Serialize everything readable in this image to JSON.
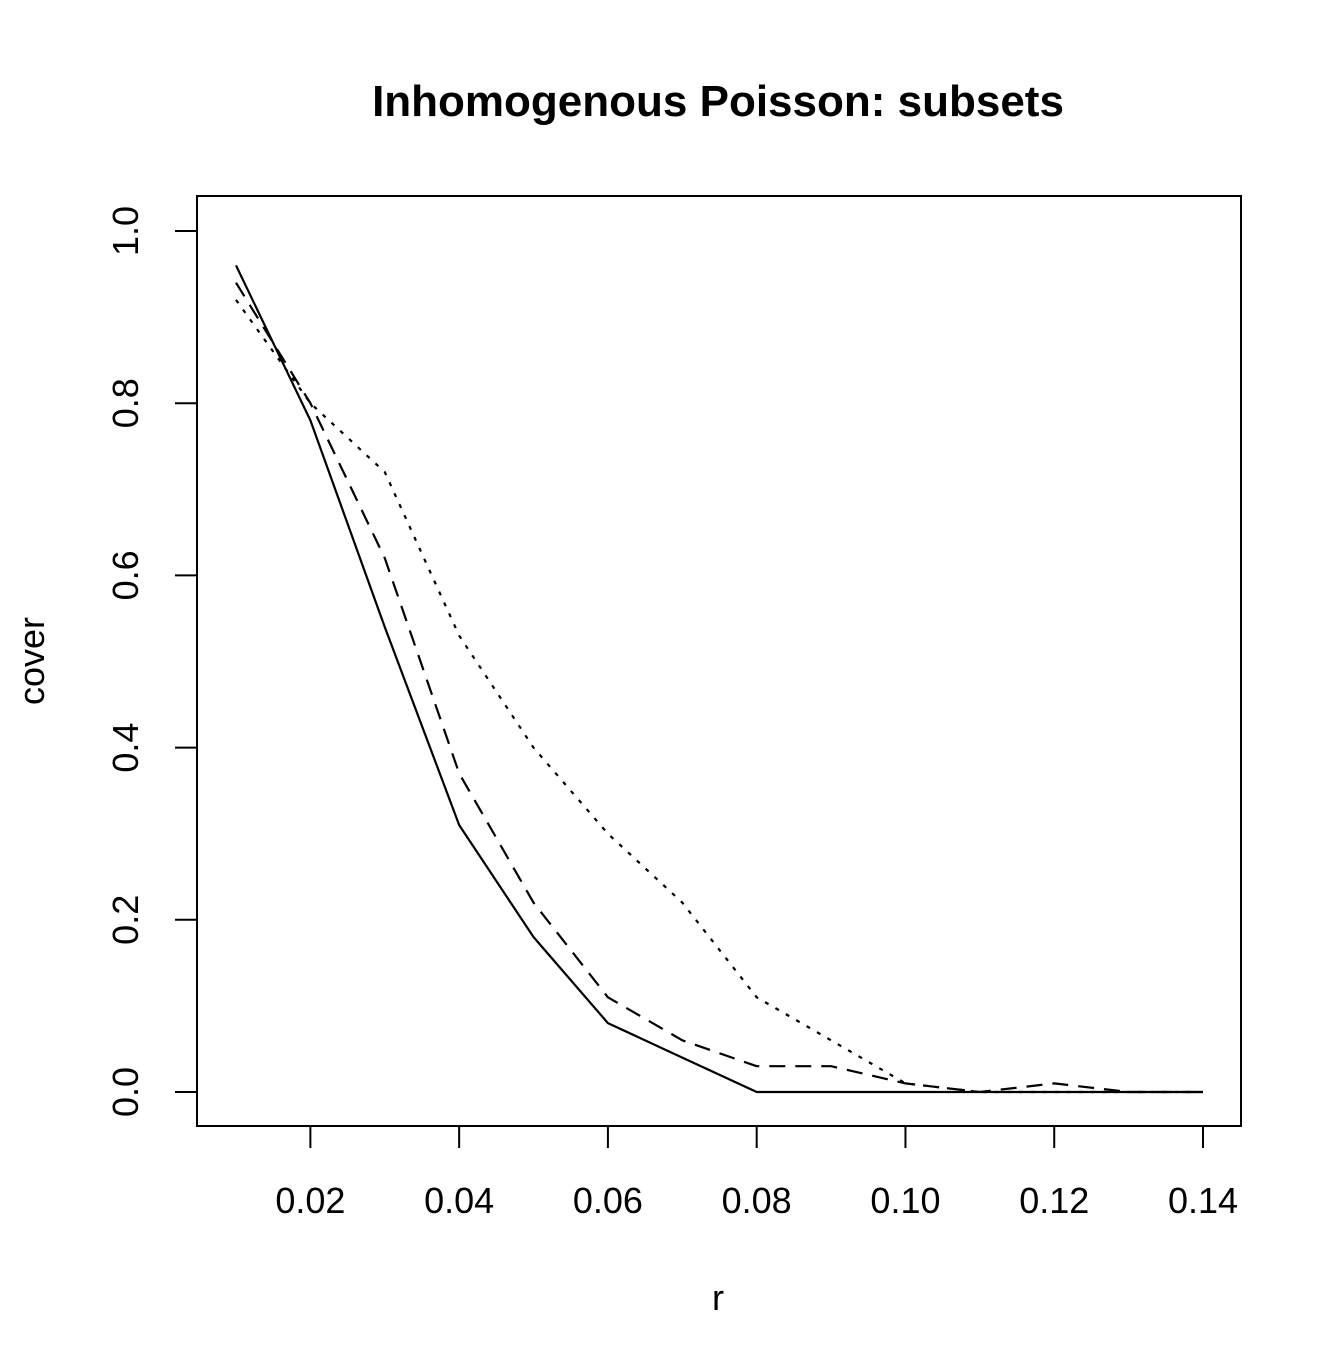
{
  "chart_data": {
    "type": "line",
    "title": "Inhomogenous Poisson: subsets",
    "xlabel": "r",
    "ylabel": "cover",
    "xlim": [
      0.01,
      0.14
    ],
    "ylim": [
      0.0,
      1.0
    ],
    "x_ticks": [
      0.02,
      0.04,
      0.06,
      0.08,
      0.1,
      0.12,
      0.14
    ],
    "x_tick_labels": [
      "0.02",
      "0.04",
      "0.06",
      "0.08",
      "0.10",
      "0.12",
      "0.14"
    ],
    "y_ticks": [
      0.0,
      0.2,
      0.4,
      0.6,
      0.8,
      1.0
    ],
    "y_tick_labels": [
      "0.0",
      "0.2",
      "0.4",
      "0.6",
      "0.8",
      "1.0"
    ],
    "grid": false,
    "legend": "none",
    "x": [
      0.01,
      0.02,
      0.03,
      0.04,
      0.05,
      0.06,
      0.07,
      0.08,
      0.09,
      0.1,
      0.11,
      0.12,
      0.13,
      0.14
    ],
    "series": [
      {
        "line_style": "solid",
        "color": "#000000",
        "values": [
          0.96,
          0.78,
          0.54,
          0.31,
          0.18,
          0.08,
          0.04,
          0.0,
          0.0,
          0.0,
          0.0,
          0.0,
          0.0,
          0.0
        ]
      },
      {
        "line_style": "dashed",
        "color": "#000000",
        "values": [
          0.94,
          0.8,
          0.62,
          0.37,
          0.22,
          0.11,
          0.06,
          0.03,
          0.03,
          0.01,
          0.0,
          0.01,
          0.0,
          0.0
        ]
      },
      {
        "line_style": "dotted",
        "color": "#000000",
        "values": [
          0.92,
          0.8,
          0.72,
          0.53,
          0.4,
          0.3,
          0.22,
          0.11,
          0.06,
          0.01,
          0.0,
          0.0,
          0.0,
          0.0
        ]
      }
    ]
  }
}
